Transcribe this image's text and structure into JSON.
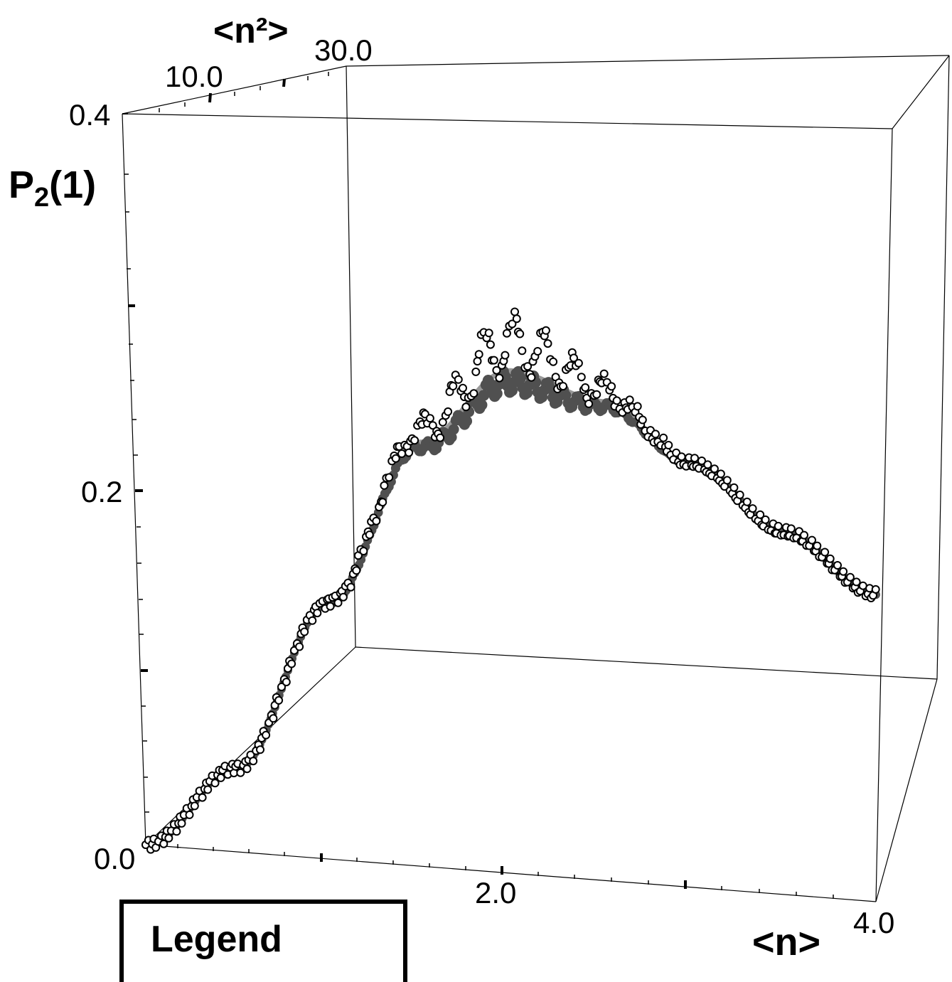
{
  "chart_data": {
    "type": "scatter",
    "projection": "3d",
    "axes": {
      "z": {
        "label_main": "P",
        "label_sub": "2",
        "label_rest": "(1)",
        "range": [
          0.0,
          0.4
        ],
        "tick_labels": [
          "0.0",
          "0.2",
          "0.4"
        ],
        "tick_values": [
          0.0,
          0.2,
          0.4
        ]
      },
      "x": {
        "label": "<n>",
        "range": [
          0.0,
          4.0
        ],
        "tick_labels": [
          "2.0",
          "4.0"
        ],
        "tick_values": [
          2.0,
          4.0
        ]
      },
      "y": {
        "label": "<n²>",
        "range": [
          0.0,
          30.0
        ],
        "tick_labels": [
          "10.0",
          "30.0"
        ],
        "tick_values": [
          10.0,
          30.0
        ]
      }
    },
    "series": [
      {
        "role": "curve",
        "color": "#999999"
      },
      {
        "role": "filled",
        "color": "#505050"
      },
      {
        "role": "open",
        "fill": "#ffffff",
        "stroke": "#000000"
      }
    ],
    "curve_knots_x": [
      0.0,
      0.5,
      1.0,
      1.5,
      2.0,
      2.5,
      3.0,
      3.5,
      4.0
    ],
    "curve_knots_p2": [
      0.0,
      0.046,
      0.14,
      0.232,
      0.275,
      0.262,
      0.231,
      0.198,
      0.168
    ],
    "grid": false
  },
  "legend": {
    "title": "Legend"
  }
}
